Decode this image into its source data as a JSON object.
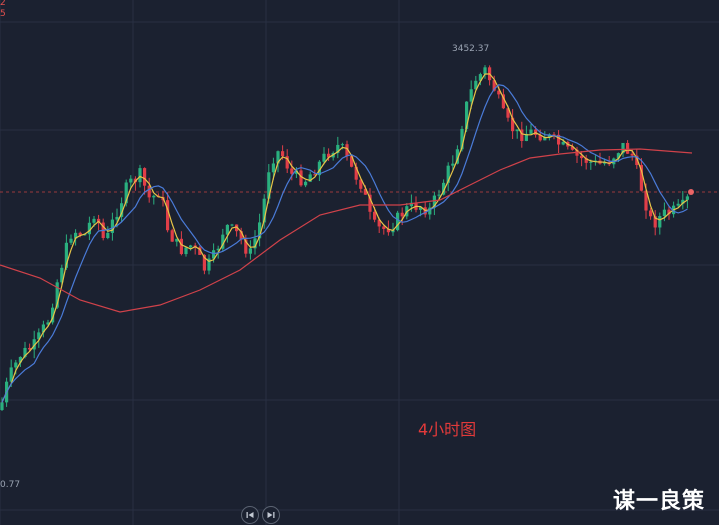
{
  "chart_data": {
    "type": "candlestick",
    "title": "",
    "subtitle": "",
    "xlabel": "",
    "ylabel": "",
    "annotations": {
      "high_price": "3452.37",
      "low_price": "0.77",
      "timeframe": "4小时图",
      "corner_top": "2",
      "corner_bottom": "5"
    },
    "indicators": [
      {
        "name": "",
        "color": "#e8c547",
        "kind": "short MA"
      },
      {
        "name": "",
        "color": "#4a7bd8",
        "kind": "medium MA"
      },
      {
        "name": "",
        "color": "#d0424a",
        "kind": "long MA"
      }
    ],
    "colors": {
      "up": "#2ab07f",
      "down": "#e03e48",
      "background": "#1b2130",
      "grid": "#283042",
      "current_price_line": "#b84040"
    },
    "grid": true
  },
  "watermark": "谋一良策",
  "nav": {
    "prev_icon": "skip-back",
    "next_icon": "skip-forward"
  }
}
